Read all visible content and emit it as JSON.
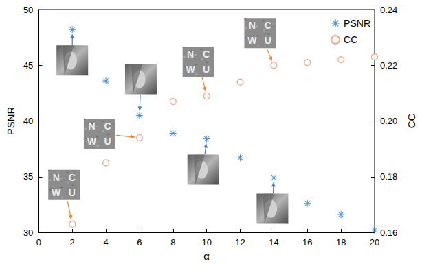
{
  "chart_data": {
    "type": "scatter",
    "x": [
      2,
      4,
      6,
      8,
      10,
      12,
      14,
      16,
      18,
      20
    ],
    "series": [
      {
        "name": "PSNR",
        "color": "#1f78c1",
        "marker": "asterisk",
        "values": [
          48.2,
          43.6,
          40.5,
          38.9,
          38.4,
          36.7,
          34.9,
          32.6,
          31.6,
          30.2
        ]
      },
      {
        "name": "CC",
        "color": "#e8956a",
        "marker": "circle",
        "axis": "y2",
        "values": [
          0.163,
          0.185,
          0.194,
          0.207,
          0.209,
          0.214,
          0.22,
          0.221,
          0.222,
          0.223
        ]
      }
    ],
    "xlabel": "α",
    "ylabel": "PSNR",
    "y2label": "CC",
    "xlim": [
      0,
      20
    ],
    "xticks": [
      0,
      2,
      4,
      6,
      8,
      10,
      12,
      14,
      16,
      18,
      20
    ],
    "ylim": [
      30,
      50
    ],
    "yticks": [
      30,
      35,
      40,
      45,
      50
    ],
    "y2lim": [
      0.16,
      0.24
    ],
    "y2ticks": [
      0.16,
      0.18,
      {
        "value": 0.2,
        "label": "0.20"
      },
      0.22,
      0.24
    ],
    "grid": false,
    "legend": "upper right",
    "annotations": [
      {
        "series": "PSNR",
        "x": 2
      },
      {
        "series": "PSNR",
        "x": 6
      },
      {
        "series": "PSNR",
        "x": 10
      },
      {
        "series": "PSNR",
        "x": 14
      },
      {
        "series": "CC",
        "x": 2,
        "text": "NCWU"
      },
      {
        "series": "CC",
        "x": 6,
        "text": "NCWU"
      },
      {
        "series": "CC",
        "x": 10,
        "text": "NCWU"
      },
      {
        "series": "CC",
        "x": 14,
        "text": "NCWU"
      }
    ]
  }
}
